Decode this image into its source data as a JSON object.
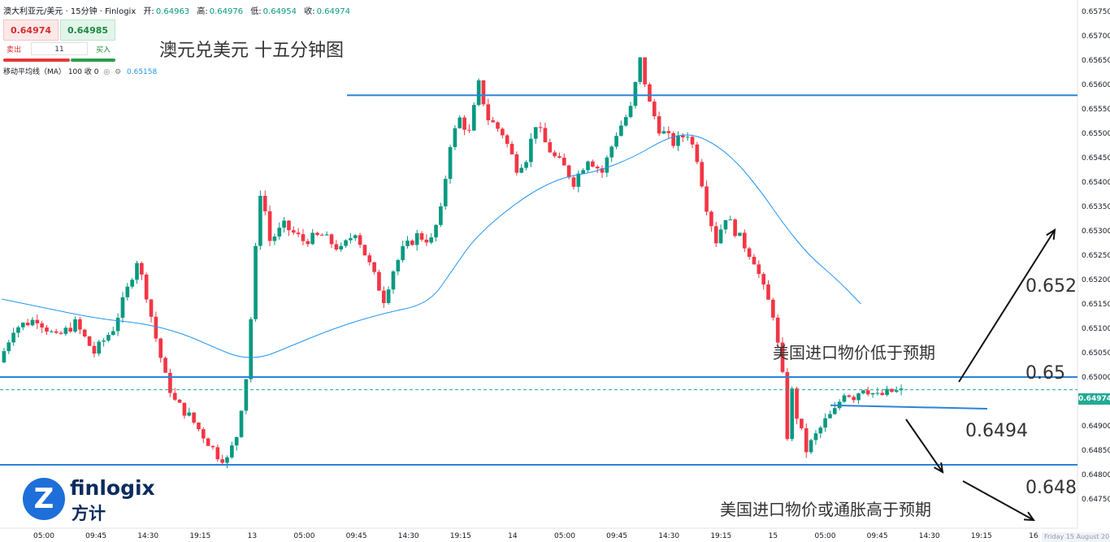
{
  "header": {
    "instrument": "澳大利亚元/美元 · 15分钟 · Finlogix",
    "open_label": "开:",
    "open": "0.64963",
    "high_label": "高:",
    "high": "0.64976",
    "low_label": "低:",
    "low": "0.64954",
    "close_label": "收:",
    "close": "0.64974"
  },
  "trade_panel": {
    "sell_price": "0.64974",
    "buy_price": "0.64985",
    "sell_label": "卖出",
    "buy_label": "买入",
    "quantity": "11"
  },
  "indicator": {
    "label": "移动平均线（MA）",
    "params": "100 收 0",
    "value": "0.65158"
  },
  "chart_data": {
    "type": "candlestick",
    "title": "澳元兑美元 十五分钟图",
    "ylim": [
      0.6472,
      0.6578
    ],
    "y_ticks": [
      "0.65750",
      "0.65700",
      "0.65650",
      "0.65600",
      "0.65550",
      "0.65500",
      "0.65450",
      "0.65400",
      "0.65350",
      "0.65300",
      "0.65250",
      "0.65200",
      "0.65150",
      "0.65100",
      "0.65050",
      "0.65000",
      "0.64950",
      "0.64900",
      "0.64850",
      "0.64800",
      "0.64750"
    ],
    "x_ticks": [
      "05:00",
      "09:45",
      "14:30",
      "19:15",
      "13",
      "05:00",
      "09:45",
      "14:30",
      "19:15",
      "14",
      "05:00",
      "09:45",
      "14:30",
      "19:15",
      "15",
      "05:00",
      "09:45",
      "14:30",
      "19:15",
      "16"
    ],
    "current_price": "0.64974",
    "price_path": [
      [
        0,
        0.6503
      ],
      [
        3,
        0.651
      ],
      [
        8,
        0.6512
      ],
      [
        12,
        0.6508
      ],
      [
        16,
        0.6511
      ],
      [
        20,
        0.6505
      ],
      [
        24,
        0.651
      ],
      [
        27,
        0.6518
      ],
      [
        29,
        0.6524
      ],
      [
        31,
        0.6517
      ],
      [
        33,
        0.6508
      ],
      [
        35,
        0.65
      ],
      [
        37,
        0.6495
      ],
      [
        40,
        0.6492
      ],
      [
        43,
        0.6488
      ],
      [
        46,
        0.6484
      ],
      [
        48,
        0.6483
      ],
      [
        50,
        0.6488
      ],
      [
        52,
        0.65
      ],
      [
        53,
        0.6512
      ],
      [
        54,
        0.6526
      ],
      [
        55,
        0.6538
      ],
      [
        56,
        0.6534
      ],
      [
        57,
        0.6528
      ],
      [
        60,
        0.6531
      ],
      [
        64,
        0.6528
      ],
      [
        68,
        0.6529
      ],
      [
        72,
        0.6526
      ],
      [
        75,
        0.653
      ],
      [
        78,
        0.6523
      ],
      [
        81,
        0.6516
      ],
      [
        83,
        0.6522
      ],
      [
        85,
        0.6526
      ],
      [
        88,
        0.6529
      ],
      [
        91,
        0.6528
      ],
      [
        93,
        0.6534
      ],
      [
        95,
        0.6548
      ],
      [
        97,
        0.6553
      ],
      [
        99,
        0.655
      ],
      [
        101,
        0.656
      ],
      [
        103,
        0.6553
      ],
      [
        106,
        0.655
      ],
      [
        109,
        0.6543
      ],
      [
        111,
        0.6545
      ],
      [
        113,
        0.6552
      ],
      [
        115,
        0.6548
      ],
      [
        117,
        0.6545
      ],
      [
        119,
        0.6543
      ],
      [
        121,
        0.654
      ],
      [
        124,
        0.6545
      ],
      [
        127,
        0.6542
      ],
      [
        130,
        0.655
      ],
      [
        133,
        0.6555
      ],
      [
        135,
        0.6565
      ],
      [
        137,
        0.6556
      ],
      [
        139,
        0.6551
      ],
      [
        142,
        0.6548
      ],
      [
        145,
        0.655
      ],
      [
        147,
        0.6545
      ],
      [
        149,
        0.6535
      ],
      [
        151,
        0.6528
      ],
      [
        153,
        0.6533
      ],
      [
        155,
        0.653
      ],
      [
        157,
        0.6527
      ],
      [
        159,
        0.6524
      ],
      [
        161,
        0.6518
      ],
      [
        163,
        0.6513
      ],
      [
        165,
        0.65
      ],
      [
        166,
        0.6488
      ],
      [
        167,
        0.6497
      ],
      [
        168,
        0.6492
      ],
      [
        170,
        0.6485
      ],
      [
        172,
        0.6488
      ],
      [
        174,
        0.6491
      ],
      [
        176,
        0.6493
      ],
      [
        178,
        0.6497
      ],
      [
        180,
        0.6496
      ],
      [
        182,
        0.6498
      ],
      [
        185,
        0.6496
      ],
      [
        188,
        0.6497
      ],
      [
        190,
        0.6497
      ]
    ],
    "moving_average_path": [
      [
        0,
        0.6516
      ],
      [
        10,
        0.6514
      ],
      [
        20,
        0.6512
      ],
      [
        30,
        0.6511
      ],
      [
        38,
        0.6509
      ],
      [
        45,
        0.6506
      ],
      [
        50,
        0.6504
      ],
      [
        55,
        0.6504
      ],
      [
        60,
        0.6506
      ],
      [
        70,
        0.651
      ],
      [
        80,
        0.6513
      ],
      [
        90,
        0.6515
      ],
      [
        95,
        0.6522
      ],
      [
        100,
        0.6529
      ],
      [
        110,
        0.6537
      ],
      [
        118,
        0.6541
      ],
      [
        125,
        0.6542
      ],
      [
        133,
        0.6545
      ],
      [
        140,
        0.6549
      ],
      [
        145,
        0.655
      ],
      [
        150,
        0.6548
      ],
      [
        155,
        0.6544
      ],
      [
        160,
        0.6538
      ],
      [
        165,
        0.6531
      ],
      [
        170,
        0.6525
      ],
      [
        176,
        0.652
      ],
      [
        181,
        0.6515
      ]
    ],
    "levels": [
      {
        "label": "0.652",
        "value": 0.652
      },
      {
        "label": "0.65",
        "value": 0.65
      },
      {
        "label": "0.6494",
        "value": 0.6494
      },
      {
        "label": "0.648",
        "value": 0.6482
      }
    ],
    "annotations": [
      "美国进口物价低于预期",
      "美国进口物价或通胀高于预期"
    ],
    "series": [
      {
        "name": "澳大利亚元/美元",
        "color": "#089981"
      },
      {
        "name": "移动平均线（MA）",
        "color": "#2196f3"
      }
    ],
    "colors": {
      "up": "#089981",
      "down": "#f23645",
      "ma": "#2196f3",
      "level": "#2a84d8"
    },
    "grid": false
  },
  "watermark": {
    "brand": "finlogix",
    "brand_cn": "方计",
    "mark": "Z"
  },
  "footer_date": "Friday 15 August 20"
}
